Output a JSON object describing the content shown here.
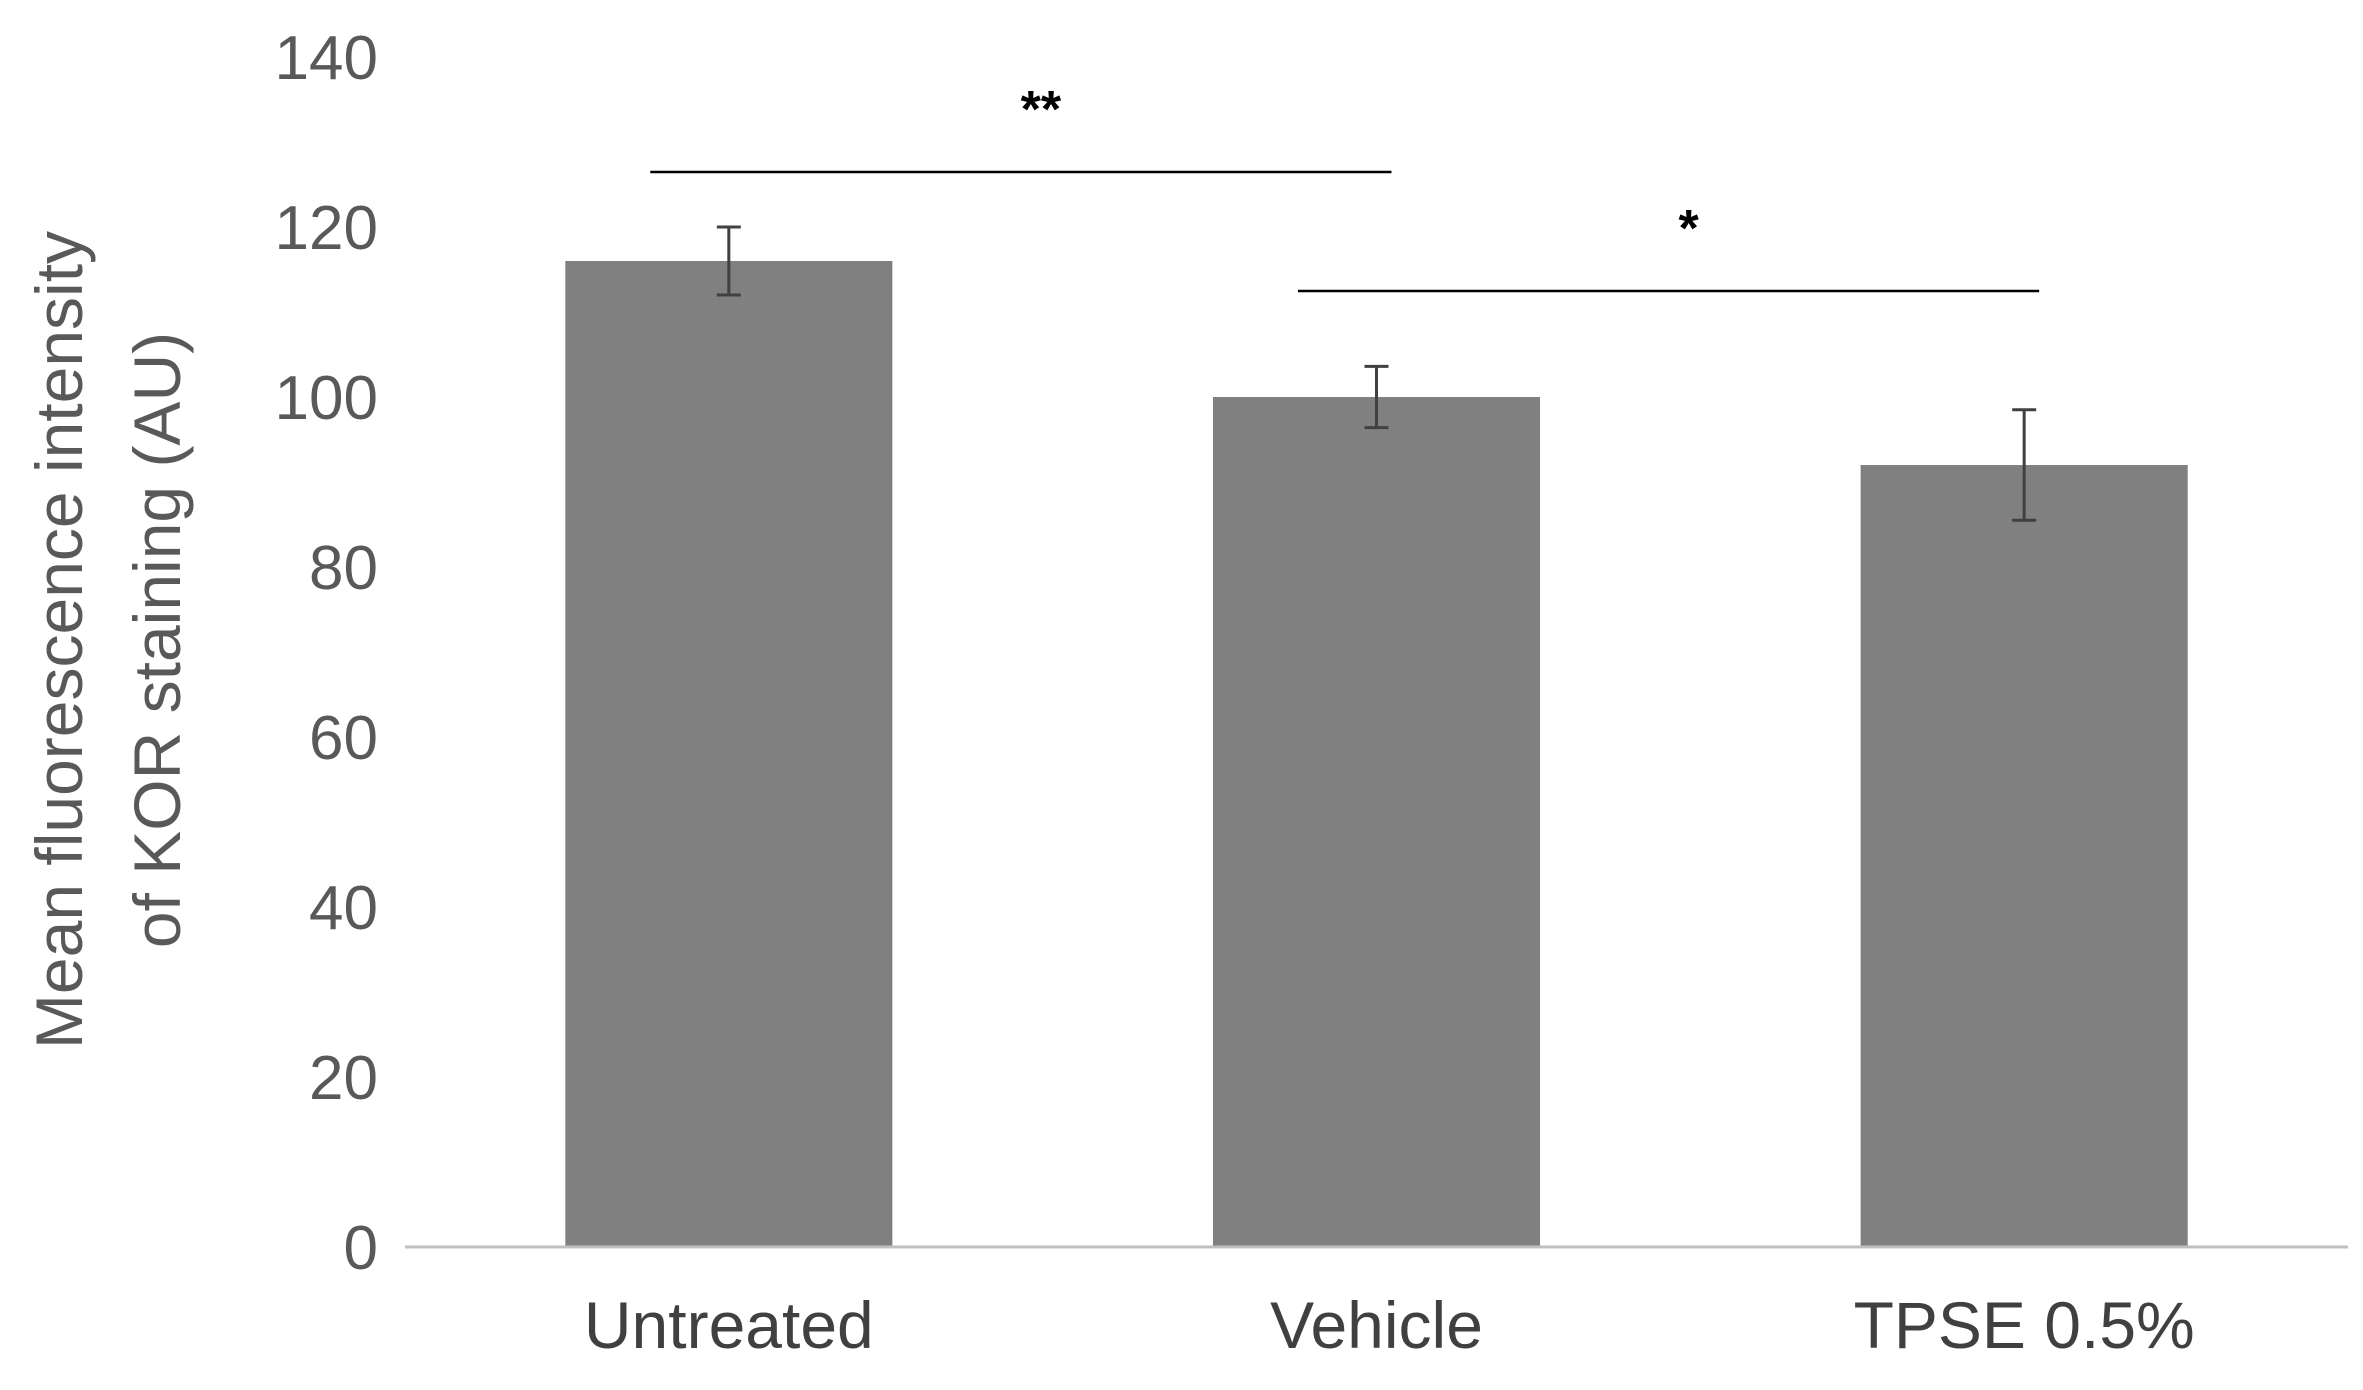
{
  "chart_data": {
    "type": "bar",
    "categories": [
      "Untreated",
      "Vehicle",
      "TPSE 0.5%"
    ],
    "values": [
      116,
      100,
      92
    ],
    "error": [
      4,
      3.6,
      6.5
    ],
    "ylabel_lines": [
      "Mean fluorescence intensity",
      "of KOR staining (AU)"
    ],
    "xlabel": "",
    "title": "",
    "ylim": [
      0,
      140
    ],
    "yticks": [
      0,
      20,
      40,
      60,
      80,
      100,
      120,
      140
    ],
    "grid": false,
    "legend": "none",
    "significance": [
      {
        "from": 0,
        "to": 1,
        "label": "**",
        "level": 126
      },
      {
        "from": 1,
        "to": 2,
        "label": "*",
        "level": 112
      }
    ],
    "colors": {
      "bar": "#808080",
      "error_bar": "#404040",
      "axis": "#bfbfbf",
      "sig_line": "#000000"
    }
  }
}
